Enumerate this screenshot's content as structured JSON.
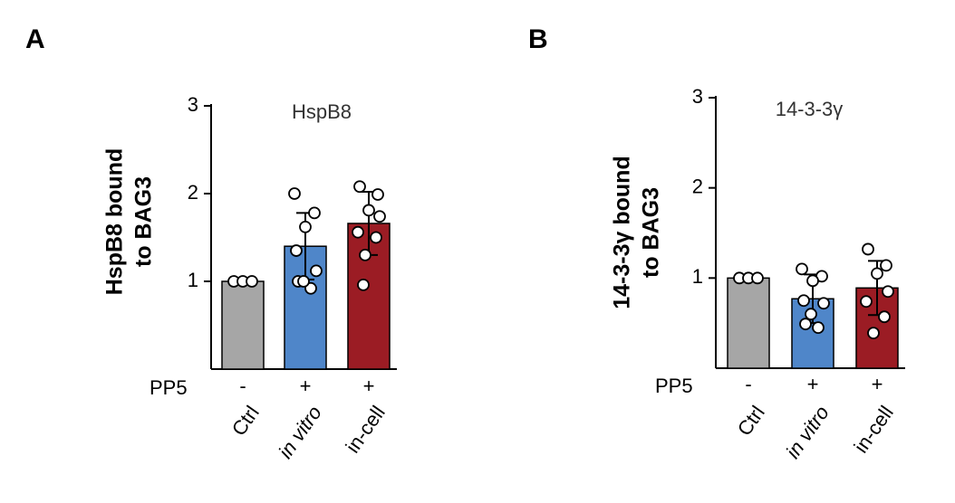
{
  "chart_data": [
    {
      "type": "bar",
      "panel_label": "A",
      "title": "HspB8",
      "ylabel_lines": [
        "HspB8  bound",
        "to BAG3"
      ],
      "row_label": "PP5",
      "row_marks": [
        "-",
        "+",
        "+"
      ],
      "categories": [
        "Ctrl",
        "in vitro",
        "in-cell"
      ],
      "colors": [
        "#a6a6a6",
        "#4f86c9",
        "#9b1c24"
      ],
      "values": [
        1.0,
        1.4,
        1.66
      ],
      "errors": [
        0,
        0.38,
        0.36
      ],
      "points": [
        [
          1.0,
          1.0,
          1.0
        ],
        [
          2.0,
          1.78,
          1.62,
          1.35,
          1.12,
          1.0,
          0.92,
          1.0
        ],
        [
          2.08,
          1.99,
          1.81,
          1.74,
          1.56,
          1.5,
          1.3,
          0.96
        ]
      ],
      "ylim": [
        0,
        3
      ],
      "yticks": [
        1,
        2,
        3
      ]
    },
    {
      "type": "bar",
      "panel_label": "B",
      "title": "14-3-3γ",
      "ylabel_lines": [
        "14-3-3γ bound",
        "to BAG3"
      ],
      "row_label": "PP5",
      "row_marks": [
        "-",
        "+",
        "+"
      ],
      "categories": [
        "Ctrl",
        "in vitro",
        "in-cell"
      ],
      "colors": [
        "#a6a6a6",
        "#4f86c9",
        "#9b1c24"
      ],
      "values": [
        1.0,
        0.77,
        0.89
      ],
      "errors": [
        0,
        0.27,
        0.3
      ],
      "points": [
        [
          1.0,
          1.0,
          1.0
        ],
        [
          1.1,
          1.02,
          0.97,
          0.75,
          0.72,
          0.49,
          0.45,
          0.6
        ],
        [
          1.32,
          1.14,
          1.05,
          0.85,
          0.74,
          0.57,
          0.39
        ]
      ],
      "ylim": [
        0,
        3
      ],
      "yticks": [
        1,
        2,
        3
      ]
    }
  ]
}
